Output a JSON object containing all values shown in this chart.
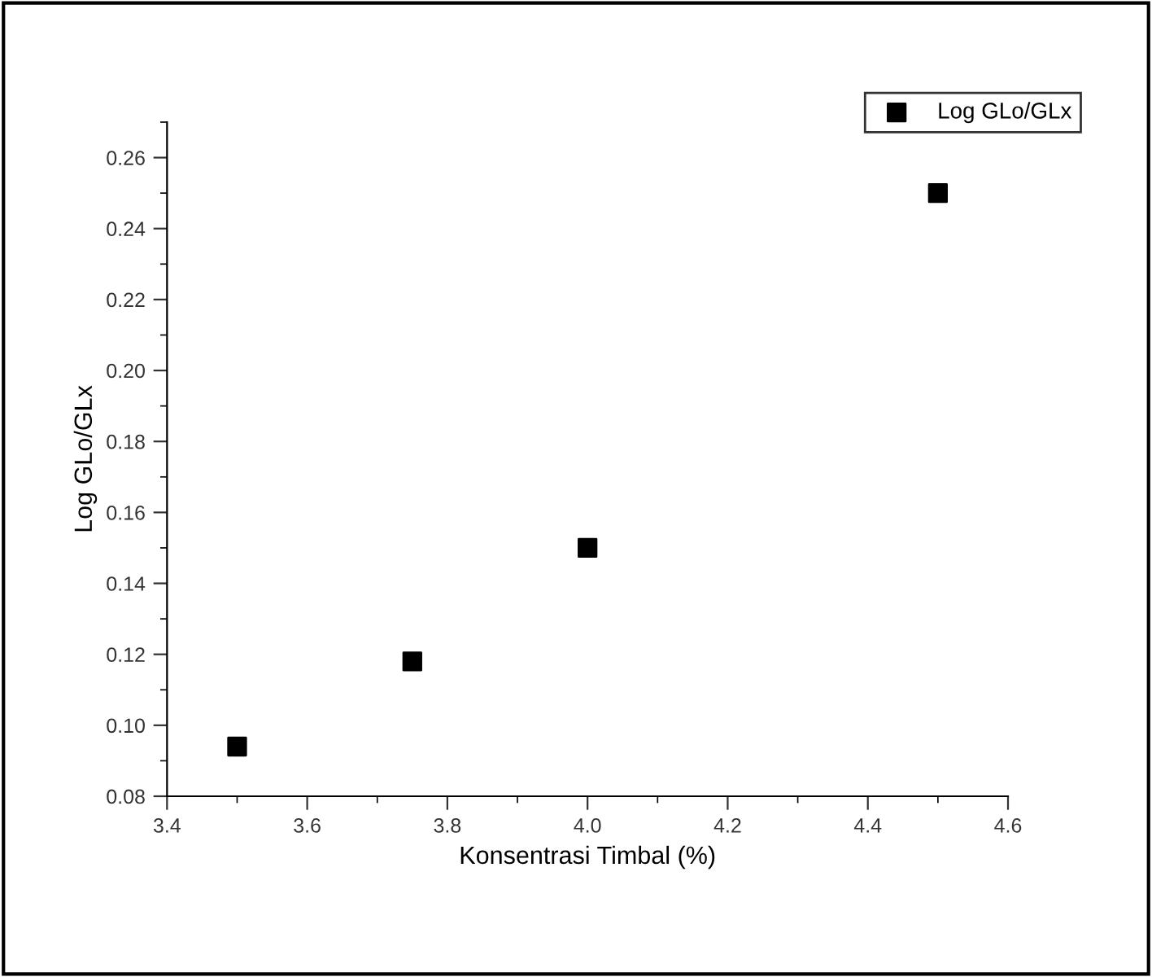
{
  "chart_data": {
    "type": "scatter",
    "xlabel": "Konsentrasi Timbal (%)",
    "ylabel": "Log GLo/GLx",
    "x": [
      3.5,
      3.75,
      4.0,
      4.5
    ],
    "series": [
      {
        "name": "Log GLo/GLx",
        "color": "#000000",
        "values": [
          0.094,
          0.118,
          0.15,
          0.25
        ]
      }
    ],
    "marker": "square",
    "legend": "top right",
    "grid": false,
    "xlim": [
      3.4,
      4.6
    ],
    "xticks": [
      3.4,
      3.6,
      3.8,
      {
        "value": 4.0,
        "label": "4.0"
      },
      4.2,
      4.4,
      4.6
    ],
    "ylim": [
      0.08,
      0.27
    ],
    "yticks": [
      0.08,
      {
        "value": 0.1,
        "label": "0.10"
      },
      0.12,
      0.14,
      0.16,
      0.18,
      {
        "value": 0.2,
        "label": "0.20"
      },
      0.22,
      0.24,
      0.26
    ]
  }
}
